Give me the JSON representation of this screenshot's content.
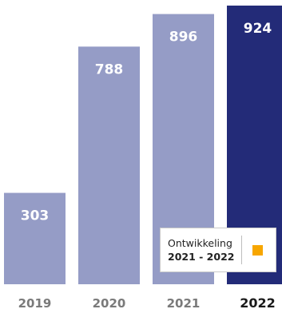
{
  "chart_data": {
    "type": "bar",
    "categories": [
      "2019",
      "2020",
      "2021",
      "2022"
    ],
    "values": [
      303,
      788,
      896,
      924
    ],
    "highlight_index": 3,
    "ylim": [
      0,
      924
    ],
    "grid": false,
    "legend": "none",
    "title": "",
    "xlabel": "",
    "ylabel": ""
  },
  "colors": {
    "bar": "#959cc6",
    "bar_highlight": "#232b78",
    "label": "#ffffff",
    "tick": "#7a7a7a",
    "tick_highlight": "#1a1a1a",
    "marker": "#f7a600"
  },
  "callout": {
    "title": "Ontwikkeling",
    "range": "2021 - 2022",
    "marker_icon": "orange-square"
  }
}
